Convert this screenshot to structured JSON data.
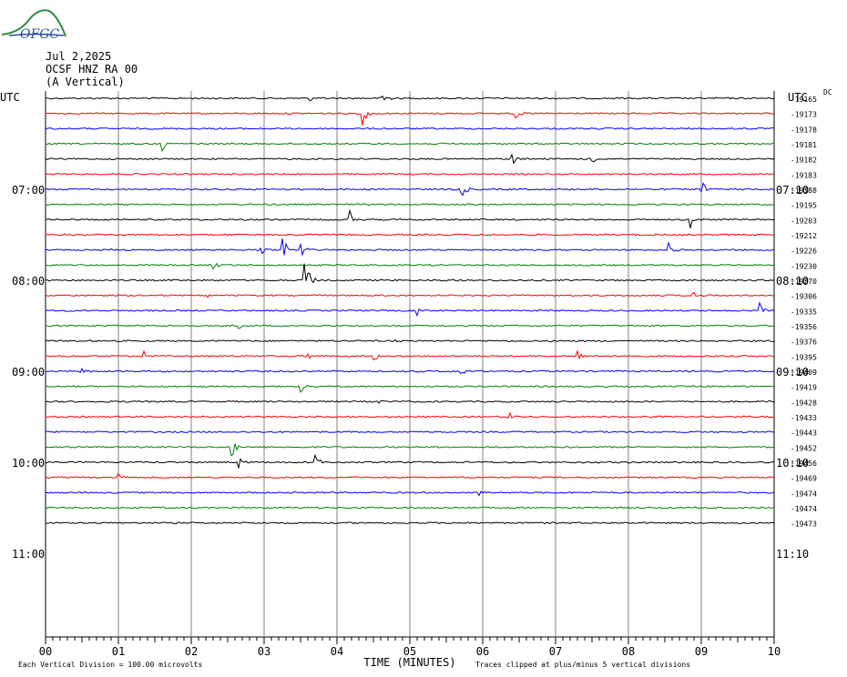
{
  "header": {
    "date": "Jul 2,2025",
    "station": "OCSF HNZ RA 00",
    "component": "(A Vertical)",
    "logo_text": "OFGC"
  },
  "footer": {
    "xlabel": "TIME (MINUTES)",
    "scale_note": "Each Vertical Division =  100.00 microvolts",
    "clip_note": "Traces clipped at plus/minus 5 vertical divisions"
  },
  "chart_data": {
    "type": "line",
    "title": "",
    "xlabel": "TIME (MINUTES)",
    "ylabel": "",
    "xlim": [
      0,
      10
    ],
    "x_ticks": [
      "00",
      "01",
      "02",
      "03",
      "04",
      "05",
      "06",
      "07",
      "08",
      "09",
      "10"
    ],
    "left_axis_label": "UTC",
    "right_axis_label": "UTC",
    "left_hour_labels": [
      "07:00",
      "08:00",
      "09:00",
      "10:00",
      "11:00"
    ],
    "right_hour_labels": [
      "07:10",
      "08:10",
      "09:10",
      "10:10",
      "11:10"
    ],
    "dc_label": "DC",
    "trace_colors": [
      "#000000",
      "#ff0000",
      "#0000ff",
      "#008000"
    ],
    "trace_offsets": [
      -19165,
      -19173,
      -19178,
      -19181,
      -19182,
      -19183,
      -19188,
      -19195,
      -19203,
      -19212,
      -19226,
      -19230,
      -19270,
      -19306,
      -19335,
      -19356,
      -19376,
      -19395,
      -19409,
      -19419,
      -19428,
      -19433,
      -19443,
      -19452,
      -19456,
      -19469,
      -19474,
      -19474,
      -19473
    ],
    "events": [
      {
        "trace": 0,
        "minute": 3.6,
        "amp": 0.5
      },
      {
        "trace": 0,
        "minute": 4.6,
        "amp": 0.9
      },
      {
        "trace": 1,
        "minute": 4.35,
        "amp": 1.0
      },
      {
        "trace": 1,
        "minute": 6.45,
        "amp": 0.4
      },
      {
        "trace": 3,
        "minute": 1.6,
        "amp": 0.5
      },
      {
        "trace": 4,
        "minute": 6.4,
        "amp": 0.5
      },
      {
        "trace": 4,
        "minute": 7.5,
        "amp": 0.4
      },
      {
        "trace": 6,
        "minute": 5.7,
        "amp": 0.9
      },
      {
        "trace": 6,
        "minute": 9.0,
        "amp": 0.7
      },
      {
        "trace": 8,
        "minute": 4.15,
        "amp": 1.0
      },
      {
        "trace": 8,
        "minute": 8.85,
        "amp": 0.8
      },
      {
        "trace": 10,
        "minute": 0.9,
        "amp": 0.4
      },
      {
        "trace": 10,
        "minute": 2.95,
        "amp": 0.5
      },
      {
        "trace": 10,
        "minute": 3.25,
        "amp": 1.0
      },
      {
        "trace": 10,
        "minute": 3.5,
        "amp": 0.7
      },
      {
        "trace": 10,
        "minute": 8.55,
        "amp": 0.6
      },
      {
        "trace": 11,
        "minute": 2.3,
        "amp": 0.3
      },
      {
        "trace": 12,
        "minute": 3.55,
        "amp": 2.0
      },
      {
        "trace": 12,
        "minute": 5.5,
        "amp": 0.3
      },
      {
        "trace": 13,
        "minute": 2.2,
        "amp": 0.3
      },
      {
        "trace": 13,
        "minute": 8.85,
        "amp": 0.6
      },
      {
        "trace": 14,
        "minute": 5.1,
        "amp": 0.4
      },
      {
        "trace": 14,
        "minute": 9.8,
        "amp": 0.7
      },
      {
        "trace": 15,
        "minute": 2.65,
        "amp": 0.4
      },
      {
        "trace": 16,
        "minute": 4.75,
        "amp": 0.3
      },
      {
        "trace": 17,
        "minute": 1.35,
        "amp": 0.5
      },
      {
        "trace": 17,
        "minute": 3.55,
        "amp": 0.6
      },
      {
        "trace": 17,
        "minute": 4.5,
        "amp": 0.4
      },
      {
        "trace": 17,
        "minute": 7.3,
        "amp": 0.5
      },
      {
        "trace": 18,
        "minute": 0.45,
        "amp": 0.5
      },
      {
        "trace": 18,
        "minute": 5.7,
        "amp": 0.5
      },
      {
        "trace": 19,
        "minute": 3.5,
        "amp": 0.5
      },
      {
        "trace": 20,
        "minute": 4.55,
        "amp": 0.3
      },
      {
        "trace": 21,
        "minute": 6.35,
        "amp": 0.4
      },
      {
        "trace": 23,
        "minute": 2.55,
        "amp": 0.9
      },
      {
        "trace": 24,
        "minute": 2.65,
        "amp": 0.5
      },
      {
        "trace": 24,
        "minute": 3.7,
        "amp": 0.6
      },
      {
        "trace": 25,
        "minute": 1.0,
        "amp": 0.4
      },
      {
        "trace": 26,
        "minute": 5.95,
        "amp": 0.3
      }
    ]
  }
}
